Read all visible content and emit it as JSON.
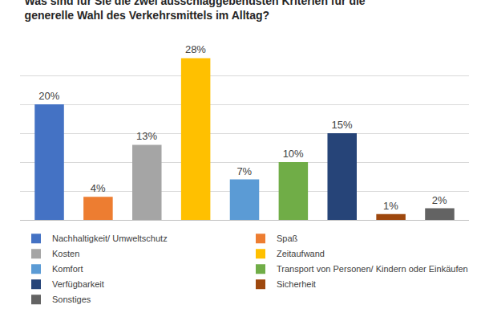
{
  "chart_data": {
    "type": "bar",
    "title": "Was sind für Sie die zwei ausschlaggebendsten Kriterien für die generelle Wahl des Verkehrsmittels im Alltag?",
    "categories": [
      "Nachhaltigkeit/ Umweltschutz",
      "Spaß",
      "Kosten",
      "Zeitaufwand",
      "Komfort",
      "Transport von Personen/ Kindern oder Einkäufen",
      "Verfügbarkeit",
      "Sicherheit",
      "Sonstiges"
    ],
    "values": [
      20,
      4,
      13,
      28,
      7,
      10,
      15,
      1,
      2
    ],
    "value_labels": [
      "20%",
      "4%",
      "13%",
      "28%",
      "7%",
      "10%",
      "15%",
      "1%",
      "2%"
    ],
    "colors": [
      "#4472c4",
      "#ed7d31",
      "#a5a5a5",
      "#ffc000",
      "#5b9bd5",
      "#70ad47",
      "#264478",
      "#9e480e",
      "#636363"
    ],
    "ylim": [
      0,
      30
    ],
    "yticks": [
      0,
      5,
      10,
      15,
      20,
      25,
      30
    ],
    "grid": true,
    "data_labels": true,
    "tick_labels": false,
    "legend": "bottom"
  }
}
